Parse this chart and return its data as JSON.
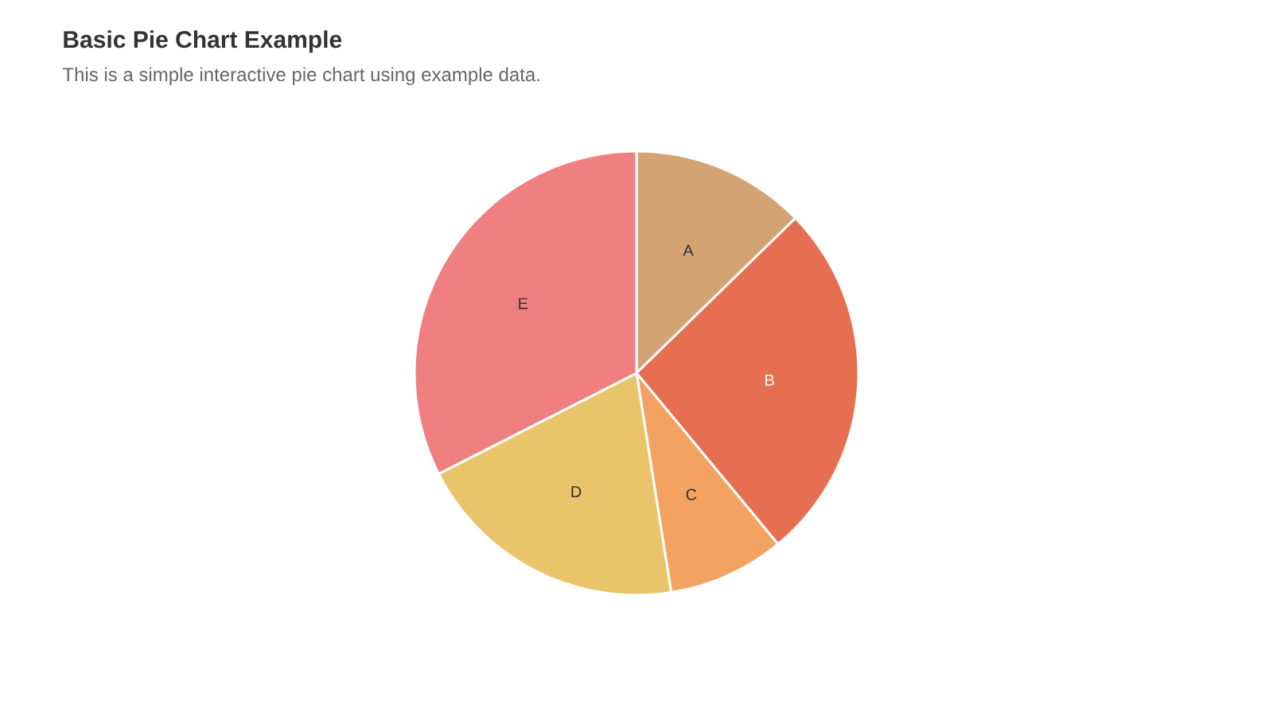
{
  "chart_data": {
    "type": "pie",
    "title": "Basic Pie Chart Example",
    "subtitle": "This is a simple interactive pie chart using example data.",
    "categories": [
      "A",
      "B",
      "C",
      "D",
      "E"
    ],
    "values": [
      12.7,
      26.3,
      8.5,
      20.0,
      32.5
    ],
    "colors": [
      "#d4a373",
      "#e76f51",
      "#f4a261",
      "#e9c46a",
      "#f08080"
    ]
  }
}
